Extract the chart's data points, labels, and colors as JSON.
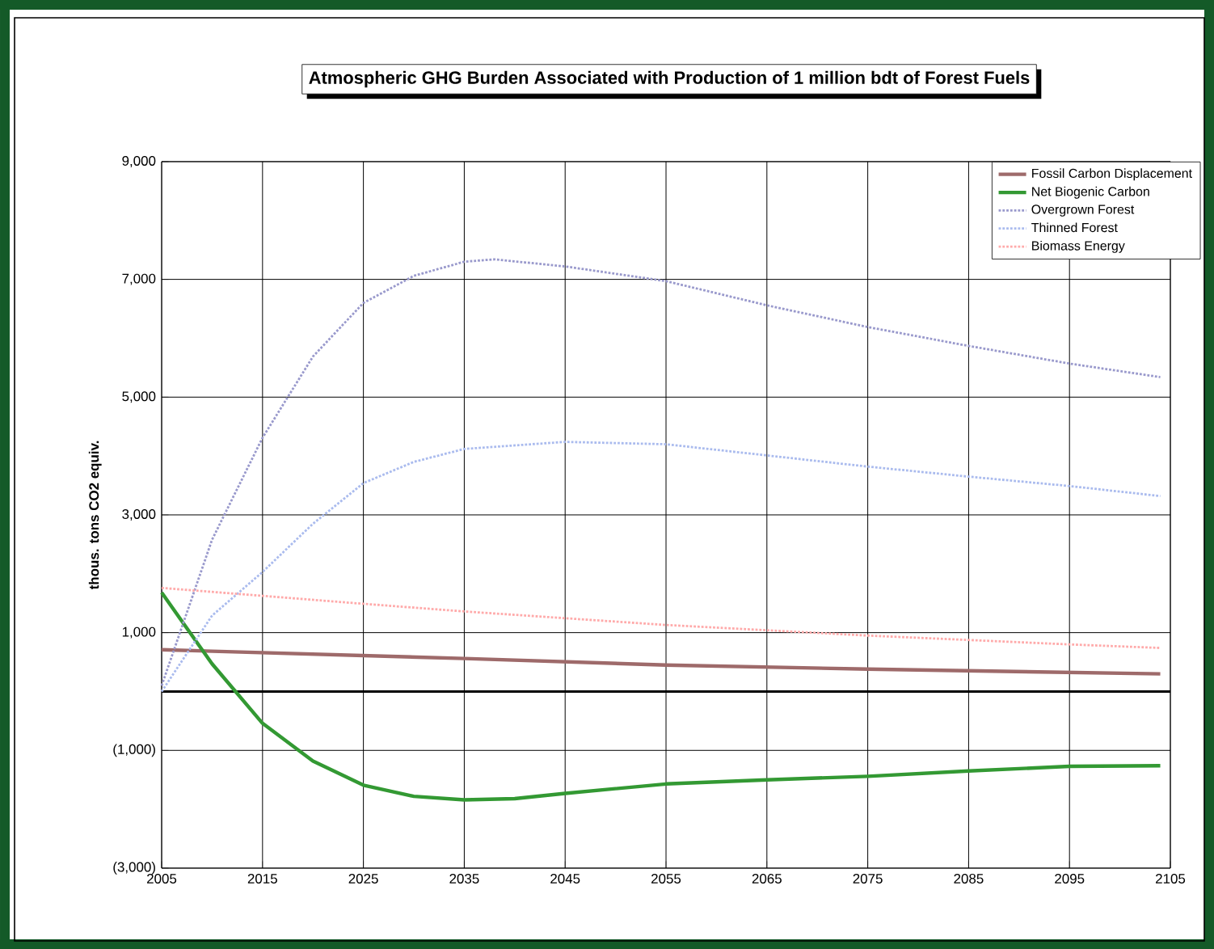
{
  "chart_data": {
    "type": "line",
    "title": "Atmospheric GHG Burden Associated with Production of 1 million bdt of Forest Fuels",
    "ylabel": "thous. tons CO2 equiv.",
    "xlim": [
      2005,
      2105
    ],
    "xticks": [
      2005,
      2015,
      2025,
      2035,
      2045,
      2055,
      2065,
      2075,
      2085,
      2095,
      2105
    ],
    "ylim": [
      -3000,
      9000
    ],
    "yticks": [
      {
        "value": -3000,
        "label": "(3,000)"
      },
      {
        "value": -1000,
        "label": "(1,000)"
      },
      {
        "value": 1000,
        "label": "1,000"
      },
      {
        "value": 3000,
        "label": "3,000"
      },
      {
        "value": 5000,
        "label": "5,000"
      },
      {
        "value": 7000,
        "label": "7,000"
      },
      {
        "value": 9000,
        "label": "9,000"
      }
    ],
    "grid": true,
    "legend": "top right",
    "marker": "none",
    "ref_lines": [
      {
        "axis": "y",
        "value": 0,
        "color": "#000000"
      }
    ],
    "series": [
      {
        "name": "Fossil Carbon Displacement",
        "color": "#9e6a6a",
        "line_style": "solid",
        "x": [
          2005,
          2035,
          2055,
          2075,
          2104
        ],
        "values": [
          710,
          560,
          450,
          380,
          300
        ]
      },
      {
        "name": "Net Biogenic Carbon",
        "color": "#339933",
        "line_style": "solid",
        "x": [
          2005,
          2010,
          2015,
          2020,
          2025,
          2030,
          2035,
          2040,
          2045,
          2055,
          2065,
          2075,
          2085,
          2095,
          2104
        ],
        "values": [
          1680,
          470,
          -540,
          -1180,
          -1590,
          -1780,
          -1840,
          -1820,
          -1730,
          -1570,
          -1500,
          -1440,
          -1350,
          -1270,
          -1260
        ]
      },
      {
        "name": "Overgrown Forest",
        "color": "#9999cc",
        "line_style": "dotted",
        "x": [
          2005,
          2010,
          2015,
          2020,
          2025,
          2030,
          2035,
          2038,
          2045,
          2055,
          2065,
          2075,
          2085,
          2095,
          2104
        ],
        "values": [
          100,
          2580,
          4310,
          5690,
          6600,
          7060,
          7300,
          7340,
          7220,
          6970,
          6560,
          6190,
          5870,
          5570,
          5340
        ]
      },
      {
        "name": "Thinned Forest",
        "color": "#aabbee",
        "line_style": "dotted",
        "x": [
          2005,
          2010,
          2015,
          2020,
          2025,
          2030,
          2035,
          2045,
          2055,
          2065,
          2075,
          2085,
          2095,
          2104
        ],
        "values": [
          0,
          1290,
          2030,
          2850,
          3540,
          3900,
          4120,
          4240,
          4200,
          4010,
          3820,
          3650,
          3490,
          3320
        ]
      },
      {
        "name": "Biomass Energy",
        "color": "#ffaaaa",
        "line_style": "dotted",
        "x": [
          2005,
          2025,
          2035,
          2055,
          2075,
          2095,
          2104
        ],
        "values": [
          1760,
          1490,
          1360,
          1130,
          950,
          800,
          740
        ]
      }
    ]
  }
}
